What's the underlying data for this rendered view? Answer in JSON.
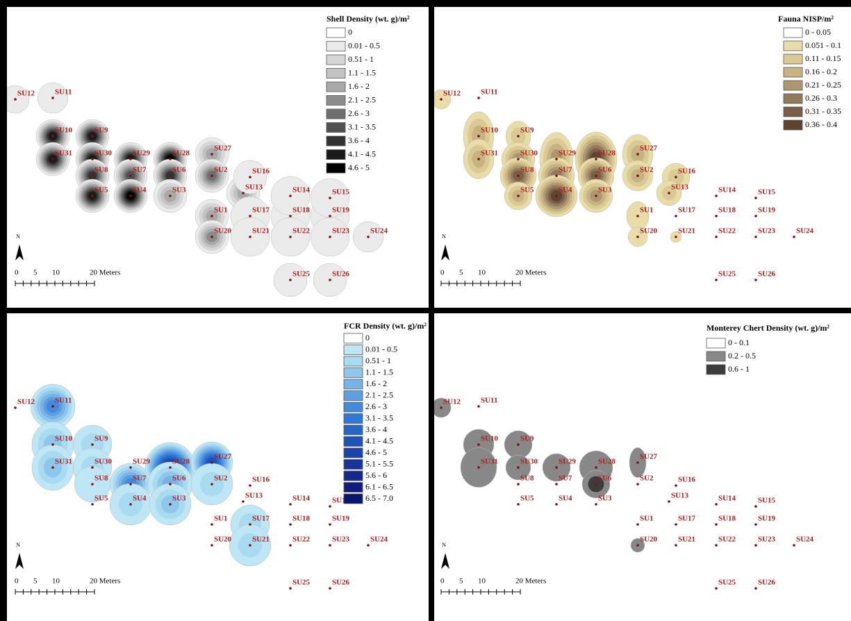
{
  "figures": [
    {
      "title": "Shell Density (wt. g)/m²",
      "legend": [
        {
          "label": "0",
          "color": "#ffffff"
        },
        {
          "label": "0.01 - 0.5",
          "color": "#ebebeb"
        },
        {
          "label": "0.51 - 1",
          "color": "#d6d6d6"
        },
        {
          "label": "1.1 - 1.5",
          "color": "#c2c2c2"
        },
        {
          "label": "1.6 - 2",
          "color": "#a8a8a8"
        },
        {
          "label": "2.1 - 2.5",
          "color": "#8c8c8c"
        },
        {
          "label": "2.6 - 3",
          "color": "#6e6e6e"
        },
        {
          "label": "3.1 - 3.5",
          "color": "#505050"
        },
        {
          "label": "3.6 - 4",
          "color": "#333333"
        },
        {
          "label": "4.1 - 4.5",
          "color": "#1a1a1a"
        },
        {
          "label": "4.6 - 5",
          "color": "#000000"
        }
      ]
    },
    {
      "title": "Fauna NISP/m²",
      "legend": [
        {
          "label": "0 - 0.05",
          "color": "#ffffff"
        },
        {
          "label": "0.051 - 0.1",
          "color": "#e8dca8"
        },
        {
          "label": "0.11 - 0.15",
          "color": "#d9c994"
        },
        {
          "label": "0.16 - 0.2",
          "color": "#c7b281"
        },
        {
          "label": "0.21 - 0.25",
          "color": "#ad9670"
        },
        {
          "label": "0.26 - 0.3",
          "color": "#947a5c"
        },
        {
          "label": "0.31 - 0.35",
          "color": "#7a5e45"
        },
        {
          "label": "0.36 - 0.4",
          "color": "#5e4430"
        }
      ]
    },
    {
      "title": "FCR Density (wt. g)/m²",
      "legend": [
        {
          "label": "0",
          "color": "#ffffff"
        },
        {
          "label": "0.01 - 0.5",
          "color": "#bee6f5"
        },
        {
          "label": "0.51 - 1",
          "color": "#a8daf0"
        },
        {
          "label": "1.1 - 1.5",
          "color": "#8fc6ec"
        },
        {
          "label": "1.6 - 2",
          "color": "#77b3e6"
        },
        {
          "label": "2.1 - 2.5",
          "color": "#5b9fe0"
        },
        {
          "label": "2.6 - 3",
          "color": "#4389dc"
        },
        {
          "label": "3.1 - 3.5",
          "color": "#2f78d6"
        },
        {
          "label": "3.6 - 4",
          "color": "#2566c9"
        },
        {
          "label": "4.1 - 4.5",
          "color": "#1e53bb"
        },
        {
          "label": "4.6 - 5",
          "color": "#1a43ac"
        },
        {
          "label": "5.1 - 5.5",
          "color": "#16359c"
        },
        {
          "label": "5.6 - 6",
          "color": "#12288c"
        },
        {
          "label": "6.1 - 6.5",
          "color": "#0e1d7e"
        },
        {
          "label": "6.5 - 7.0",
          "color": "#0a1570"
        }
      ]
    },
    {
      "title": "Monterey Chert Density (wt. g)/m²",
      "legend": [
        {
          "label": "0 - 0.1",
          "color": "#ffffff"
        },
        {
          "label": "0.2 - 0.5",
          "color": "#888888"
        },
        {
          "label": "0.6 - 1",
          "color": "#3c3c3c"
        }
      ]
    }
  ],
  "sites": [
    "SU1",
    "SU2",
    "SU3",
    "SU4",
    "SU5",
    "SU6",
    "SU7",
    "SU8",
    "SU9",
    "SU10",
    "SU11",
    "SU12",
    "SU13",
    "SU14",
    "SU15",
    "SU16",
    "SU17",
    "SU18",
    "SU19",
    "SU20",
    "SU21",
    "SU22",
    "SU23",
    "SU24",
    "SU25",
    "SU26",
    "SU27",
    "SU28",
    "SU29",
    "SU30",
    "SU31"
  ],
  "scale": {
    "labels": [
      "0",
      "5",
      "10",
      "20 Meters"
    ]
  },
  "north": "N"
}
